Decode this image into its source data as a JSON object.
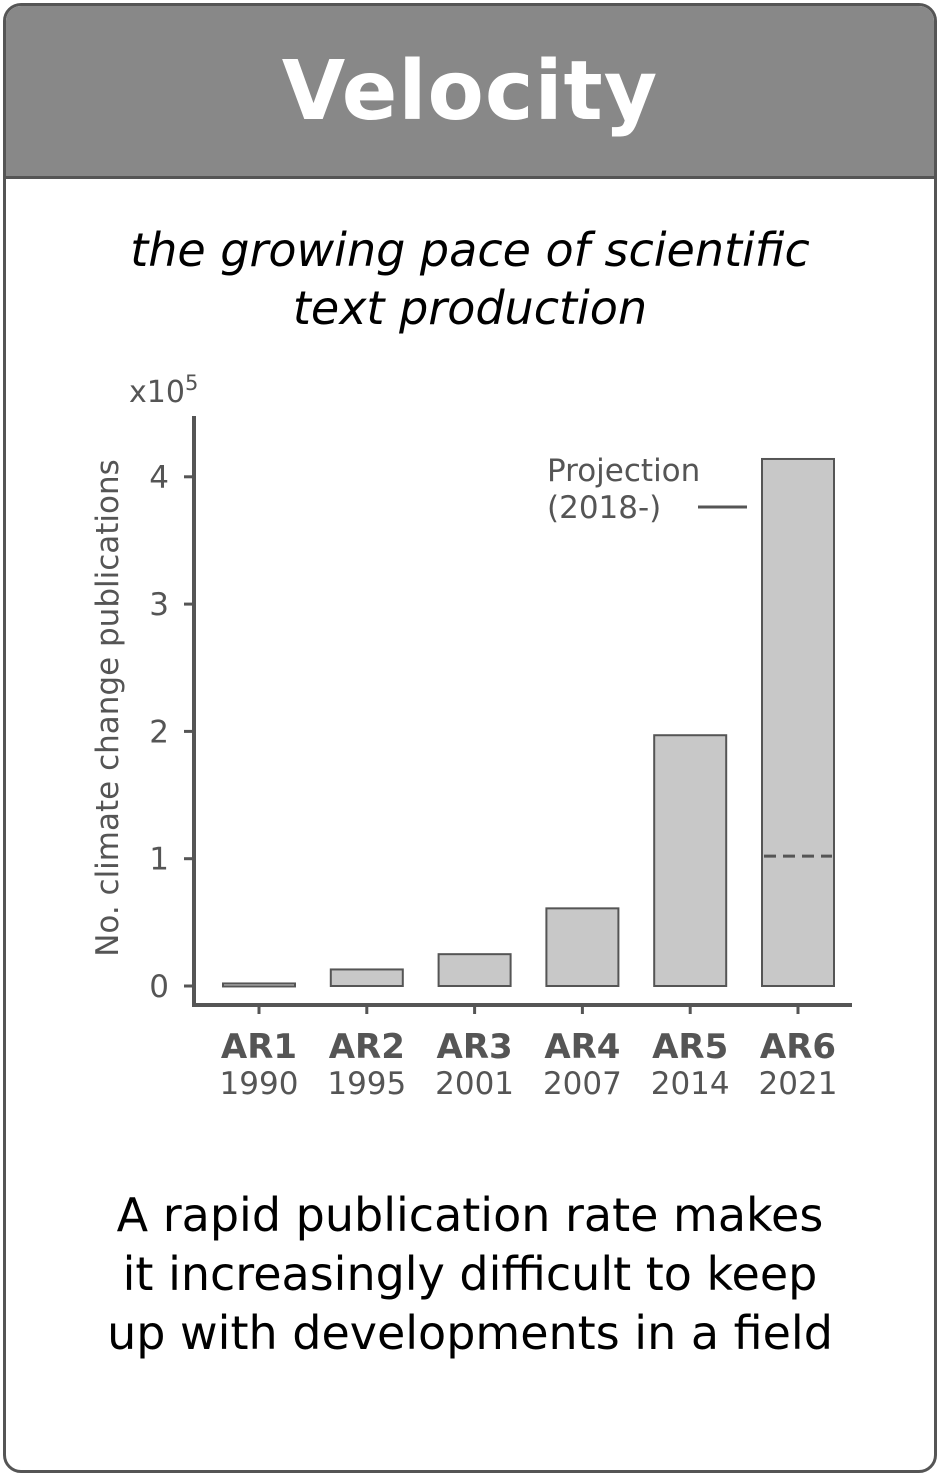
{
  "header": {
    "title": "Velocity"
  },
  "subtitle": {
    "line1": "the growing pace of scientific",
    "line2": "text production"
  },
  "caption": {
    "line1": "A rapid publication rate makes",
    "line2": "it increasingly difficult to keep",
    "line3": "up with developments in a field"
  },
  "chart_data": {
    "type": "bar",
    "categories": [
      "AR1",
      "AR2",
      "AR3",
      "AR4",
      "AR5",
      "AR6"
    ],
    "category_years": [
      "1990",
      "1995",
      "2001",
      "2007",
      "2014",
      "2021"
    ],
    "values": [
      0.02,
      0.13,
      0.25,
      0.61,
      1.97,
      4.14
    ],
    "projection_split": {
      "category": "AR6",
      "value": 1.02
    },
    "annotation_line1": "Projection",
    "annotation_line2": "(2018-)",
    "ylabel": "No. climate change publications",
    "y_multiplier": "x10",
    "y_multiplier_exp": "5",
    "ylim": [
      0,
      4.4
    ],
    "yticks": [
      "0",
      "1",
      "2",
      "3",
      "4"
    ],
    "bar_color": "#c8c8c8",
    "edge_color": "#555555",
    "grid": false
  }
}
